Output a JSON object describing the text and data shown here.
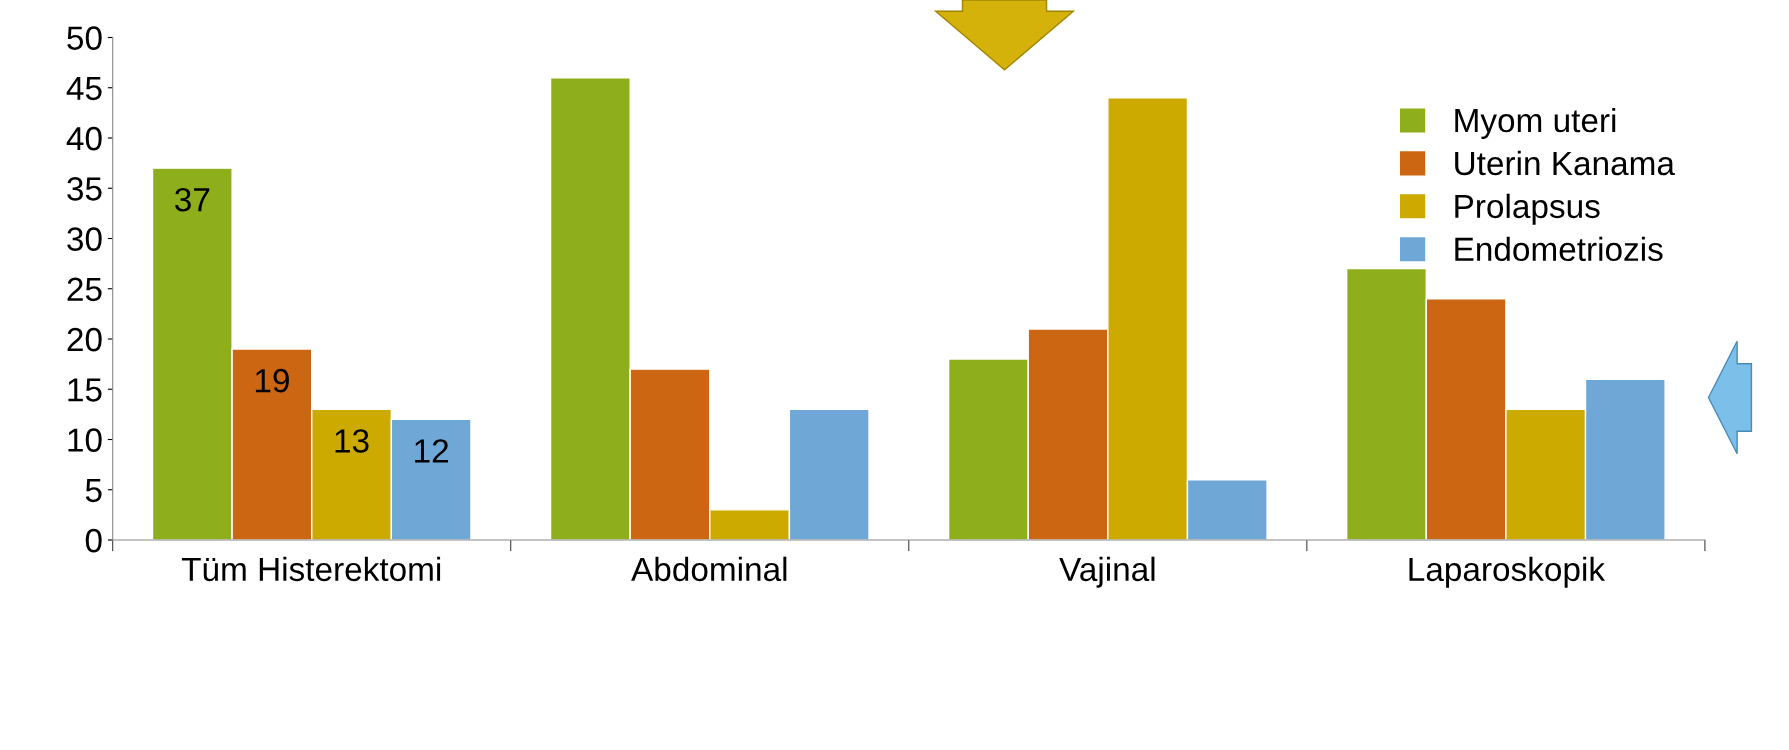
{
  "chart_data": {
    "type": "bar",
    "categories": [
      "Tüm Histerektomi",
      "Abdominal",
      "Vajinal",
      "Laparoskopik"
    ],
    "series": [
      {
        "name": "Myom uteri",
        "color": "#8fae1b",
        "values": [
          37,
          46,
          18,
          27
        ],
        "value_labels": [
          "37",
          null,
          null,
          null
        ]
      },
      {
        "name": "Uterin Kanama",
        "color": "#cc6613",
        "values": [
          19,
          17,
          21,
          24
        ],
        "value_labels": [
          "19",
          null,
          null,
          null
        ]
      },
      {
        "name": "Prolapsus",
        "color": "#ccaa00",
        "values": [
          13,
          3,
          44,
          13
        ],
        "value_labels": [
          "13",
          null,
          null,
          null
        ]
      },
      {
        "name": "Endometriozis",
        "color": "#6fa8d6",
        "values": [
          12,
          13,
          6,
          16
        ],
        "value_labels": [
          "12",
          null,
          null,
          null
        ]
      }
    ],
    "ylim": [
      0,
      50
    ],
    "yticks": [
      0,
      5,
      10,
      15,
      20,
      25,
      30,
      35,
      40,
      45,
      50
    ],
    "grid": false,
    "legend": "top right"
  }
}
